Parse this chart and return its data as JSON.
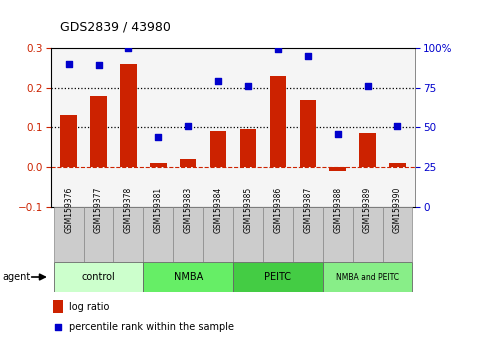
{
  "title": "GDS2839 / 43980",
  "samples": [
    "GSM159376",
    "GSM159377",
    "GSM159378",
    "GSM159381",
    "GSM159383",
    "GSM159384",
    "GSM159385",
    "GSM159386",
    "GSM159387",
    "GSM159388",
    "GSM159389",
    "GSM159390"
  ],
  "log_ratio": [
    0.13,
    0.18,
    0.26,
    0.01,
    0.02,
    0.09,
    0.095,
    0.23,
    0.17,
    -0.01,
    0.085,
    0.01
  ],
  "percentile_rank": [
    90,
    89,
    100,
    44,
    51,
    79,
    76,
    99,
    95,
    46,
    76,
    51
  ],
  "groups": [
    {
      "label": "control",
      "start": 0,
      "end": 3,
      "color": "#ccffcc"
    },
    {
      "label": "NMBA",
      "start": 3,
      "end": 6,
      "color": "#66ee66"
    },
    {
      "label": "PEITC",
      "start": 6,
      "end": 9,
      "color": "#44cc44"
    },
    {
      "label": "NMBA and PEITC",
      "start": 9,
      "end": 12,
      "color": "#88ee88"
    }
  ],
  "bar_color": "#cc2200",
  "dot_color": "#0000cc",
  "ylim_left": [
    -0.1,
    0.3
  ],
  "ylim_right": [
    0,
    100
  ],
  "yticks_left": [
    -0.1,
    0,
    0.1,
    0.2,
    0.3
  ],
  "yticks_right": [
    0,
    25,
    50,
    75,
    100
  ],
  "hlines_dotted": [
    0.1,
    0.2
  ],
  "hline_zero_color": "#cc2200",
  "bg_color": "#ffffff",
  "plot_bg_color": "#f5f5f5",
  "legend_items": [
    {
      "label": "log ratio",
      "color": "#cc2200",
      "marker": "s"
    },
    {
      "label": "percentile rank within the sample",
      "color": "#0000cc",
      "marker": "s"
    }
  ],
  "figsize": [
    4.83,
    3.54
  ],
  "dpi": 100
}
